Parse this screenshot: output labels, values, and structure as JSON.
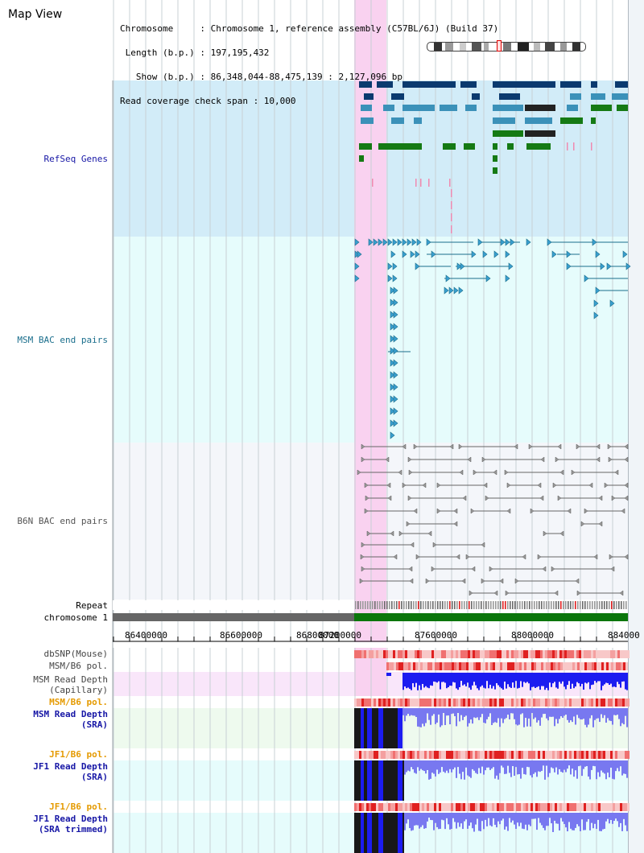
{
  "header": {
    "title": "Map View",
    "info_lines": [
      "Chromosome     : Chromosome 1, reference assembly (C57BL/6J) (Build 37)",
      " Length (b.p.) : 197,195,432",
      "   Show (b.p.) : 86,348,044-88,475,139 : 2,127,096 bp",
      "Read coverage check span : 10,000"
    ]
  },
  "tracks": {
    "refseq": "RefSeq Genes",
    "msm_bac": "MSM BAC end pairs",
    "b6n_bac": "B6N BAC end pairs",
    "repeat": "Repeat",
    "chromosome": "chromosome 1",
    "dbsnp": "dbSNP(Mouse)",
    "msm_pol1": "MSM/B6 pol.",
    "msm_depth_cap_1": "MSM Read Depth",
    "msm_depth_cap_2": "(Capillary)",
    "msm_pol2": "MSM/B6 pol.",
    "msm_depth_sra_1": "MSM Read Depth",
    "msm_depth_sra_2": "(SRA)",
    "jf1_pol1": "JF1/B6 pol.",
    "jf1_depth_sra_1": "JF1 Read Depth",
    "jf1_depth_sra_2": "(SRA)",
    "jf1_pol2": "JF1/B6 pol.",
    "jf1_depth_trim_1": "JF1 Read Depth",
    "jf1_depth_trim_2": "(SRA trimmed)"
  },
  "axis": {
    "ticks": [
      "86400000",
      "86600000",
      "86800000",
      "87200000",
      "87600000",
      "88000000",
      "884000"
    ]
  },
  "colors": {
    "refseq_bg": "#d2ecf8",
    "msm_bg": "#e6fcfc",
    "b6n_bg": "#f4f6fa",
    "highlight": "#f9d2f0",
    "gene_dark": "#0b3a6f",
    "gene_mid": "#3b91b9",
    "gene_green": "#157a14",
    "msm_feature": "#1a6e8c",
    "b6n_feature": "#666666",
    "depth_blue": "#1c1cf0",
    "depth_light": "#7878f0",
    "pol_red": "#e02020",
    "label_blue": "#1717a6",
    "label_orange": "#e59a00"
  }
}
